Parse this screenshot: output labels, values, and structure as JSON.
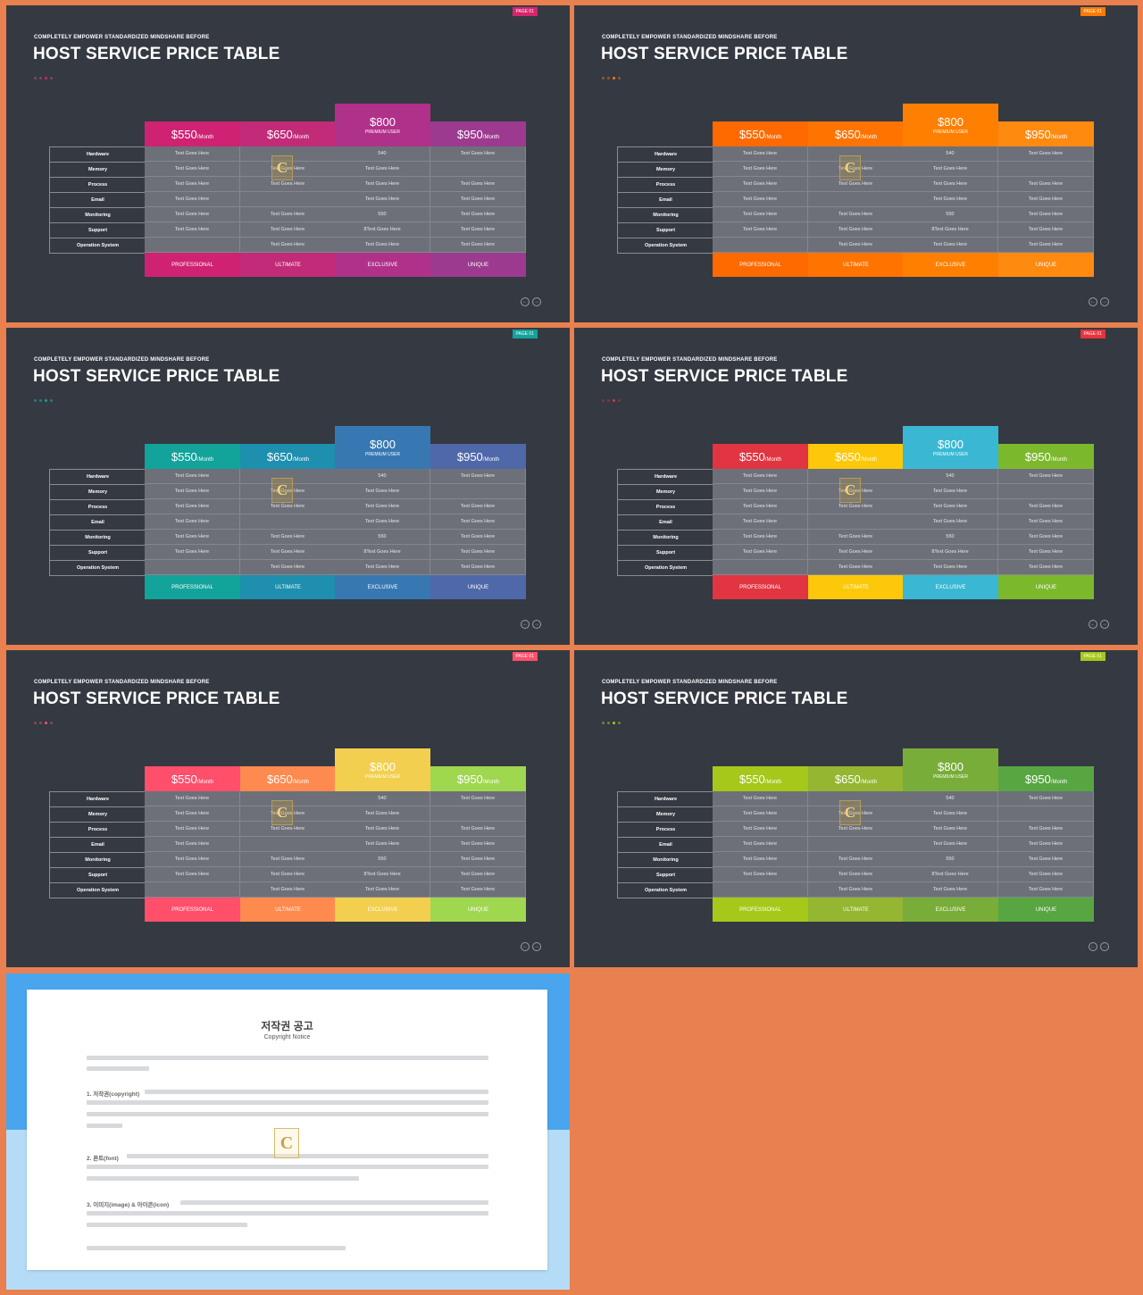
{
  "slide": {
    "subtitle": "COMPLETELY  EMPOWER  STANDARDIZED  MINDSHARE  BEFORE",
    "title": "HOST SERVICE PRICE TABLE",
    "page_tag": "PAGE 01",
    "features": [
      "Hardware",
      "Memory",
      "Process",
      "Email",
      "Monitoring",
      "Support",
      "Operation System"
    ],
    "plans": [
      {
        "price": "$550",
        "unit": "/Month",
        "premium": "",
        "footer": "PROFESSIONAL",
        "cells": [
          "Text Goes Here",
          "Text Goes Here",
          "Text Goes Here",
          "Text Goes Here",
          "Text Goes Here",
          "Text Goes Here",
          ""
        ]
      },
      {
        "price": "$650",
        "unit": "/Month",
        "premium": "",
        "footer": "ULTIMATE",
        "cells": [
          "",
          "Text Goes Here",
          "Text Goes Here",
          "",
          "Text Goes Here",
          "Text Goes Here",
          "Text Goes Here"
        ]
      },
      {
        "price": "$800",
        "unit": "",
        "premium": "PREMIUM USER",
        "footer": "EXCLUSIVE",
        "cells": [
          "540",
          "Text Goes Here",
          "Text Goes Here",
          "Text Goes Here",
          "550",
          "8Text Goes Here",
          "Text Goes Here"
        ]
      },
      {
        "price": "$950",
        "unit": "/Month",
        "premium": "",
        "footer": "UNIQUE",
        "cells": [
          "Text Goes Here",
          "",
          "Text Goes Here",
          "Text Goes Here",
          "Text Goes Here",
          "Text Goes Here",
          "Text Goes Here"
        ]
      }
    ],
    "watermark": "C"
  },
  "themes": [
    {
      "tag": "#d7246d",
      "dots": [
        "#7a4a5e",
        "#7a4a5e",
        "#d7246d",
        "#7a4a5e"
      ],
      "cols": [
        "#cf2272",
        "#c12b78",
        "#b0318a",
        "#9c3a90"
      ]
    },
    {
      "tag": "#ff7a00",
      "dots": [
        "#8a5a3a",
        "#8a5a3a",
        "#ff7a00",
        "#8a5a3a"
      ],
      "cols": [
        "#ff6a00",
        "#ff7400",
        "#ff7f00",
        "#ff8a10"
      ]
    },
    {
      "tag": "#12a39b",
      "dots": [
        "#2c7c7a",
        "#2c7c7a",
        "#12a39b",
        "#2c7c7a"
      ],
      "cols": [
        "#12a39b",
        "#1e8fae",
        "#3778b2",
        "#4f68aa"
      ]
    },
    {
      "tag": "#e8323c",
      "dots": [
        "#7a3a40",
        "#7a3a40",
        "#e8323c",
        "#7a3a40"
      ],
      "cols": [
        "#e23542",
        "#fdc80a",
        "#3ab8d3",
        "#7cb82c"
      ]
    },
    {
      "tag": "#ff4f6b",
      "dots": [
        "#8a4a55",
        "#8a4a55",
        "#ff4f6b",
        "#8a4a55"
      ],
      "cols": [
        "#ff4f6b",
        "#ff8a4f",
        "#f2cf4f",
        "#9fd74f"
      ]
    },
    {
      "tag": "#a5c81a",
      "dots": [
        "#6a8a3a",
        "#6a8a3a",
        "#a5c81a",
        "#6a8a3a"
      ],
      "cols": [
        "#a5c81a",
        "#94b630",
        "#79ad3a",
        "#57a642"
      ]
    }
  ],
  "copyright": {
    "title": "저작권 공고",
    "subtitle": "Copyright Notice",
    "sections": [
      "1. 저작권(copyright)",
      "2. 폰트(font)",
      "3. 이미지(image) & 아이콘(icon)"
    ]
  }
}
